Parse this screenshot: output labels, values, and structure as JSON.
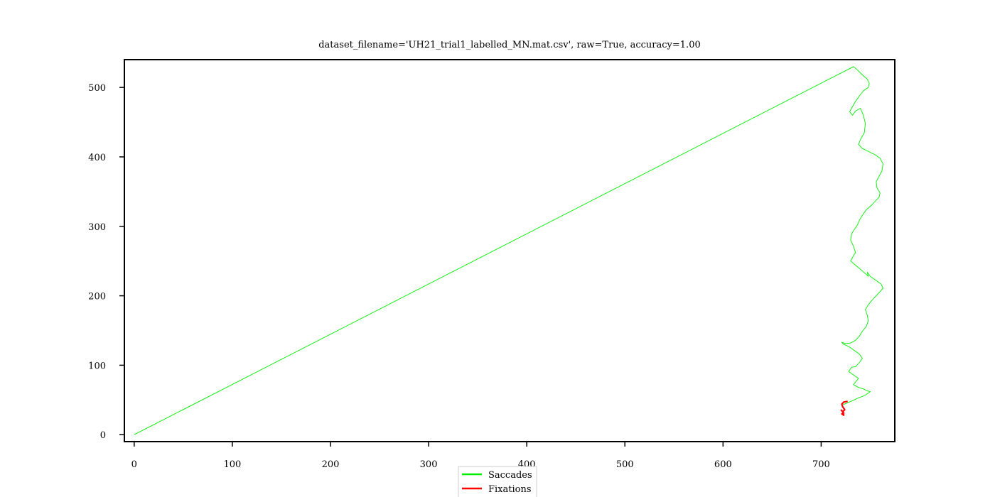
{
  "chart_data": {
    "type": "line",
    "title": "dataset_filename='UH21_trial1_labelled_MN.mat.csv', raw=True, accuracy=1.00",
    "xlabel": "",
    "ylabel": "",
    "xlim": [
      -10,
      775
    ],
    "ylim": [
      -10,
      540
    ],
    "x_ticks": [
      0,
      100,
      200,
      300,
      400,
      500,
      600,
      700
    ],
    "y_ticks": [
      0,
      100,
      200,
      300,
      400,
      500
    ],
    "x_tick_labels": [
      "0",
      "100",
      "200",
      "300",
      "400",
      "500",
      "600",
      "700"
    ],
    "y_tick_labels": [
      "0",
      "100",
      "200",
      "300",
      "400",
      "500"
    ],
    "grid": false,
    "legend_position": "bottom-center",
    "series": [
      {
        "name": "Saccades",
        "color": "#00ee00",
        "x": [
          0,
          733,
          737,
          742,
          747,
          749,
          748,
          743,
          739,
          735,
          731,
          729,
          732,
          735,
          740,
          743,
          745,
          744,
          740,
          738,
          742,
          748,
          755,
          760,
          763,
          762,
          759,
          756,
          757,
          760,
          759,
          755,
          751,
          746,
          742,
          739,
          737,
          734,
          731,
          730,
          733,
          735,
          733,
          730,
          735,
          740,
          745,
          748,
          747,
          750,
          756,
          761,
          763,
          760,
          756,
          752,
          748,
          745,
          747,
          748,
          746,
          742,
          739,
          735,
          730,
          725,
          721,
          723,
          728,
          734,
          739,
          742,
          739,
          735,
          731,
          728,
          733,
          738,
          735,
          733,
          738,
          743,
          747,
          750,
          745,
          738,
          732,
          727,
          722
        ],
        "y": [
          0,
          530,
          525,
          518,
          512,
          506,
          500,
          495,
          488,
          480,
          470,
          465,
          460,
          466,
          470,
          460,
          448,
          435,
          425,
          418,
          412,
          408,
          403,
          398,
          390,
          380,
          372,
          364,
          355,
          348,
          342,
          336,
          330,
          324,
          316,
          309,
          302,
          296,
          289,
          280,
          271,
          262,
          258,
          250,
          244,
          238,
          232,
          228,
          234,
          228,
          222,
          217,
          211,
          206,
          200,
          194,
          187,
          180,
          172,
          164,
          156,
          149,
          142,
          136,
          132,
          131,
          133,
          130,
          127,
          121,
          116,
          110,
          104,
          98,
          97,
          91,
          86,
          81,
          76,
          72,
          68,
          66,
          63,
          62,
          57,
          53,
          49,
          46,
          43
        ]
      },
      {
        "name": "Fixations",
        "color": "#ff0000",
        "x": [
          727,
          723,
          721,
          722,
          724,
          722,
          723,
          721,
          723,
          722,
          720
        ],
        "y": [
          48,
          47,
          44,
          40,
          36,
          33,
          31,
          30,
          28,
          33,
          36
        ]
      }
    ]
  }
}
